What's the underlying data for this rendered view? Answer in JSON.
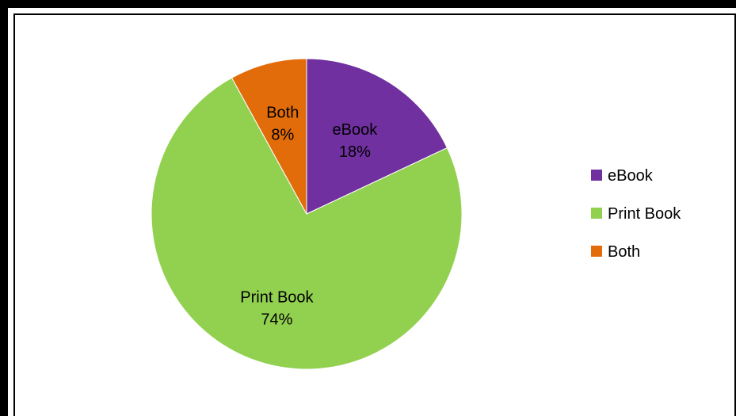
{
  "chart_data": {
    "type": "pie",
    "title": "",
    "categories": [
      "eBook",
      "Print Book",
      "Both"
    ],
    "values": [
      18,
      74,
      8
    ],
    "value_labels": [
      "18%",
      "74%",
      "8%"
    ],
    "colors": [
      "#7030A0",
      "#92D050",
      "#E36C0A"
    ],
    "legend": {
      "position": "right",
      "entries": [
        "eBook",
        "Print Book",
        "Both"
      ]
    },
    "start_angle_deg": 0,
    "direction": "clockwise"
  }
}
